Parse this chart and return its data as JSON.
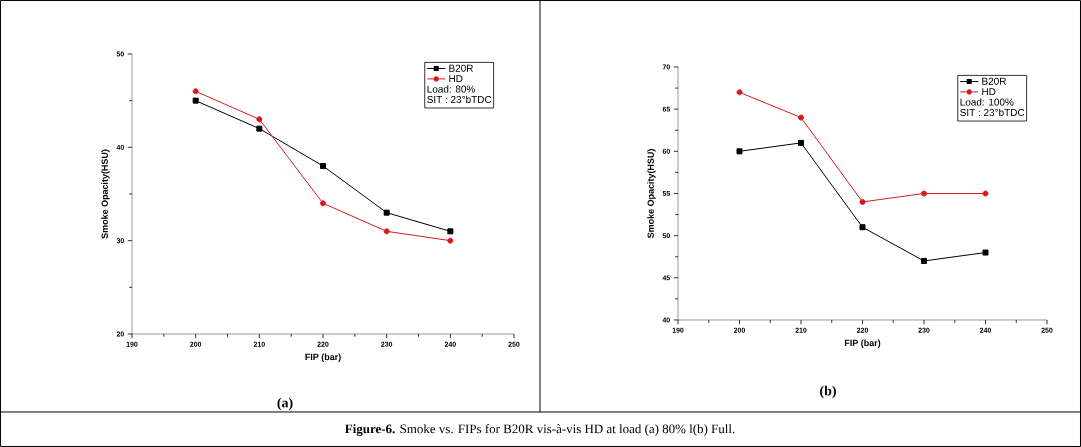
{
  "chart_data": [
    {
      "type": "line",
      "xlabel": "FIP (bar)",
      "ylabel": "Smoke Opacity(HSU)",
      "x": [
        200,
        210,
        220,
        230,
        240
      ],
      "xlim": [
        190,
        250
      ],
      "xticks": [
        190,
        200,
        210,
        220,
        230,
        240,
        250
      ],
      "ylim": [
        20,
        50
      ],
      "yticks": [
        20,
        30,
        40,
        50
      ],
      "legend": "top right",
      "grid": false,
      "series": [
        {
          "name": "B20R",
          "color": "#000000",
          "marker": "square",
          "values": [
            45,
            42,
            38,
            33,
            31
          ]
        },
        {
          "name": "HD",
          "color": "#d7191c",
          "marker": "circle",
          "values": [
            46,
            43,
            34,
            31,
            30
          ]
        }
      ],
      "annotations": [
        "Load: 80%",
        "SIT : 23°bTDC",
        "(a)",
        "**Figure-6.** Smoke vs. FIPs for B20R vis-à-vis HD at load (a) 80% l(b) Full."
      ]
    },
    {
      "type": "line",
      "xlabel": "FIP (bar)",
      "ylabel": "Smoke Opacity(HSU)",
      "x": [
        200,
        210,
        220,
        230,
        240
      ],
      "xlim": [
        190,
        250
      ],
      "xticks": [
        190,
        200,
        210,
        220,
        230,
        240,
        250
      ],
      "ylim": [
        40,
        70
      ],
      "yticks": [
        40,
        45,
        50,
        55,
        60,
        65,
        70
      ],
      "legend": "top right",
      "grid": false,
      "series": [
        {
          "name": "B20R",
          "color": "#000000",
          "marker": "square",
          "values": [
            60,
            61,
            51,
            47,
            48
          ]
        },
        {
          "name": "HD",
          "color": "#d7191c",
          "marker": "circle",
          "values": [
            67,
            64,
            54,
            55,
            55
          ]
        }
      ],
      "annotations": [
        "Load: 100%",
        "SIT : 23°bTDC",
        "(b)"
      ]
    }
  ]
}
